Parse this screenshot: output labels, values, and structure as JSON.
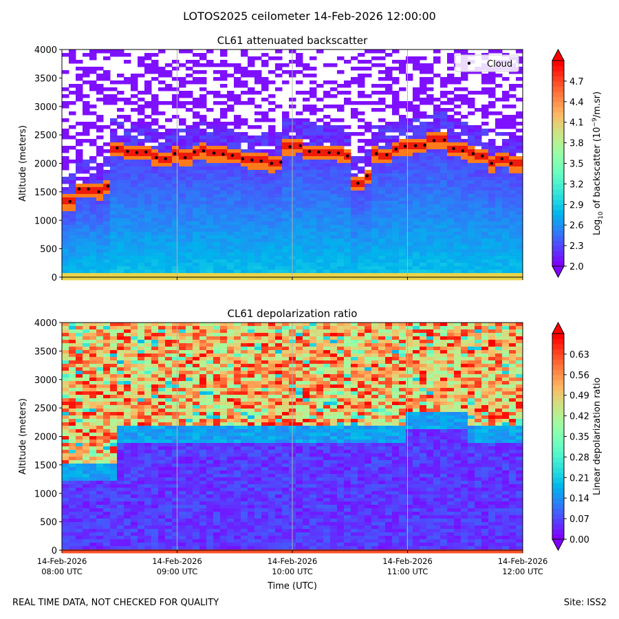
{
  "figure": {
    "suptitle": "LOTOS2025 ceilometer 14-Feb-2026 12:00:00",
    "footer_left": "REAL TIME DATA, NOT CHECKED FOR QUALITY",
    "footer_right": "Site: ISS2"
  },
  "chart_data": [
    {
      "type": "heatmap",
      "title": "CL61 attenuated backscatter",
      "ylabel": "Altitude (meters)",
      "xlabel": "",
      "ylim": [
        0,
        4000
      ],
      "y_ticks": [
        0,
        500,
        1000,
        1500,
        2000,
        2500,
        3000,
        3500,
        4000
      ],
      "x_range_hours": [
        8,
        12
      ],
      "x_ticks_hours": [
        8,
        9,
        10,
        11,
        12
      ],
      "x_tick_labels": [],
      "grid": "vertical",
      "colorbar": {
        "label_main": "Log",
        "label_sub": "10",
        "label_rest": " of backscatter (10",
        "label_exp": "−9",
        "label_end": "/m.sr)",
        "min": 2.0,
        "max": 5.0,
        "ticks": [
          "2.0",
          "2.3",
          "2.6",
          "2.9",
          "3.2",
          "3.5",
          "3.8",
          "4.1",
          "4.4",
          "4.7"
        ],
        "extend": "both"
      },
      "legend": {
        "position": "top-right",
        "entries": [
          "Cloud"
        ]
      },
      "cloud_base_series": {
        "name": "Cloud",
        "x_hours": [
          8.07,
          8.15,
          8.23,
          8.32,
          8.4,
          8.48,
          8.57,
          8.65,
          8.73,
          8.82,
          8.9,
          8.98,
          9.07,
          9.15,
          9.23,
          9.32,
          9.4,
          9.48,
          9.57,
          9.65,
          9.73,
          9.82,
          9.9,
          9.98,
          10.07,
          10.15,
          10.23,
          10.32,
          10.4,
          10.48,
          10.57,
          10.65,
          10.73,
          10.82,
          10.9,
          10.98,
          11.07,
          11.15,
          11.23,
          11.32,
          11.4,
          11.48,
          11.57,
          11.65,
          11.73,
          11.82,
          11.9
        ],
        "altitude_m": [
          1330,
          1550,
          1550,
          1500,
          1600,
          2270,
          2210,
          2190,
          2200,
          2100,
          2080,
          2170,
          2100,
          2200,
          2220,
          2180,
          2160,
          2140,
          2080,
          2060,
          2040,
          2000,
          2020,
          2290,
          2310,
          2210,
          2200,
          2190,
          2180,
          2130,
          1650,
          1780,
          2170,
          2150,
          2250,
          2300,
          2310,
          2320,
          2400,
          2410,
          2260,
          2220,
          2170,
          2130,
          2000,
          2080,
          2000
        ]
      }
    },
    {
      "type": "heatmap",
      "title": "CL61 depolarization ratio",
      "ylabel": "Altitude (meters)",
      "xlabel": "Time (UTC)",
      "ylim": [
        0,
        4000
      ],
      "y_ticks": [
        0,
        500,
        1000,
        1500,
        2000,
        2500,
        3000,
        3500,
        4000
      ],
      "x_range_hours": [
        8,
        12
      ],
      "x_ticks_hours": [
        8,
        9,
        10,
        11,
        12
      ],
      "x_tick_labels": [
        {
          "date": "14-Feb-2026",
          "time": "08:00 UTC"
        },
        {
          "date": "14-Feb-2026",
          "time": "09:00 UTC"
        },
        {
          "date": "14-Feb-2026",
          "time": "10:00 UTC"
        },
        {
          "date": "14-Feb-2026",
          "time": "11:00 UTC"
        },
        {
          "date": "14-Feb-2026",
          "time": "12:00 UTC"
        }
      ],
      "grid": "vertical",
      "colorbar": {
        "label_main": "Linear depolarization ratio",
        "min": 0.0,
        "max": 0.7,
        "ticks": [
          "0.00",
          "0.07",
          "0.14",
          "0.21",
          "0.28",
          "0.35",
          "0.42",
          "0.49",
          "0.56",
          "0.63"
        ],
        "extend": "both"
      }
    }
  ]
}
